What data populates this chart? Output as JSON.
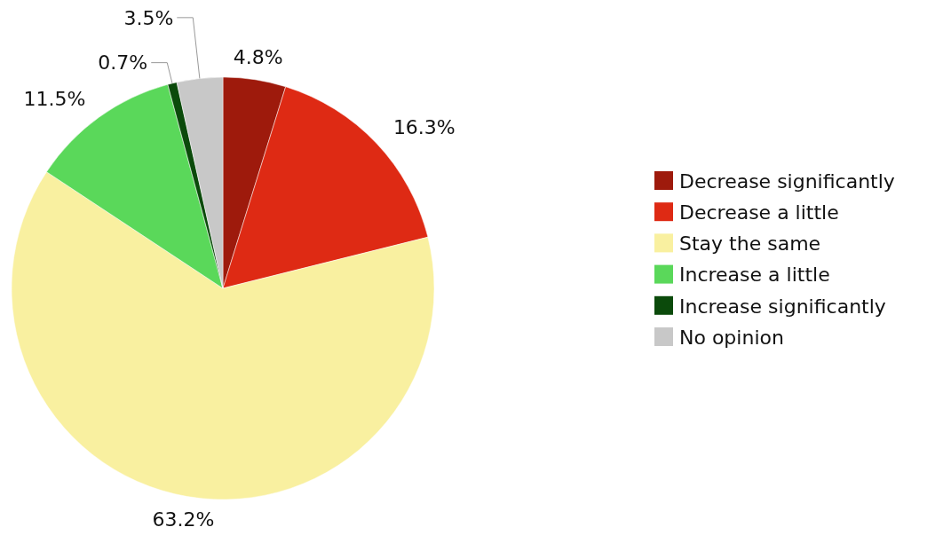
{
  "chart_data": {
    "type": "pie",
    "categories": [
      "Decrease significantly",
      "Decrease a little",
      "Stay the same",
      "Increase a little",
      "Increase significantly",
      "No opinion"
    ],
    "values": [
      4.8,
      16.3,
      63.2,
      11.5,
      0.7,
      3.5
    ],
    "colors": [
      "#9e1a0c",
      "#de2a14",
      "#f9f0a0",
      "#5ad85a",
      "#0b4a0b",
      "#c8c8c8"
    ],
    "value_labels": [
      "4.8%",
      "16.3%",
      "63.2%",
      "11.5%",
      "0.7%",
      "3.5%"
    ],
    "legend": "right"
  }
}
